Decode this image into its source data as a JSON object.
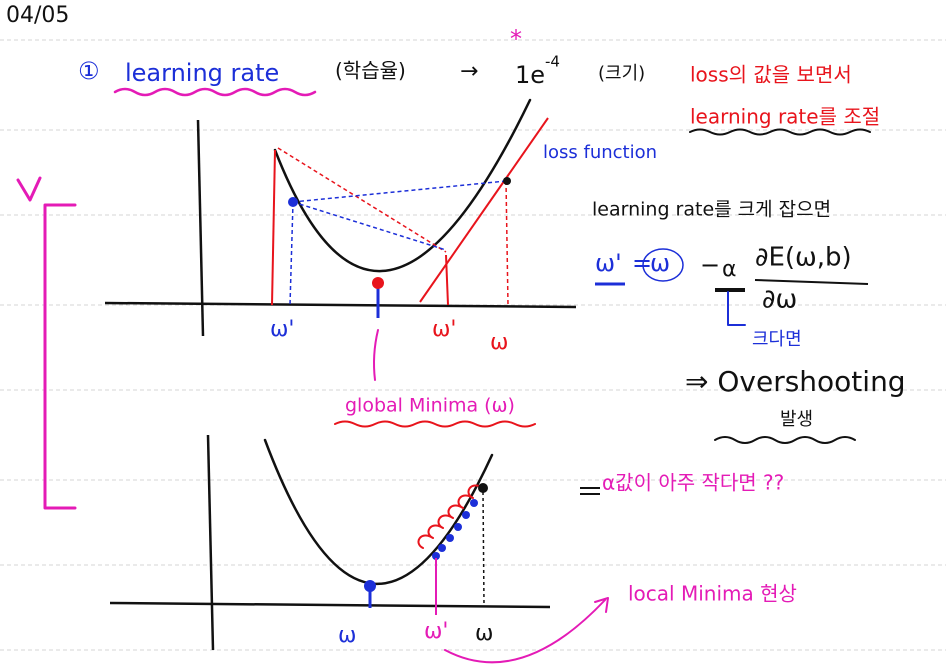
{
  "date": "04/05",
  "heading": {
    "number": "①",
    "term": "learning rate",
    "korean": "(학습율)",
    "arrow": "→",
    "value_base": "1e",
    "value_exp": "-4",
    "note": "(크기)"
  },
  "red_note": [
    "loss의 값을 보면서",
    "learning rate를 조절"
  ],
  "top_graph": {
    "curve_label": "loss function",
    "w_prime_left": "ω'",
    "w_prime_right": "ω'",
    "w": "ω",
    "minimum_label": "global Minima (ω)"
  },
  "right_notes": {
    "line1": "learning rate를 크게 잡으면",
    "formula_lhs": "ω'",
    "equals": "=",
    "formula_w": "ω",
    "minus": "−",
    "alpha": "α",
    "numerator": "∂E(ω,b)",
    "denominator": "∂ω",
    "alpha_note": "크다면",
    "result": "⇒ Overshooting",
    "result_korean": "발생",
    "question": "α값이 아주 작다면 ??"
  },
  "bottom_graph": {
    "w_left": "ω",
    "w_prime": "ω'",
    "w": "ω",
    "minimum_label": "local Minima 현상"
  }
}
